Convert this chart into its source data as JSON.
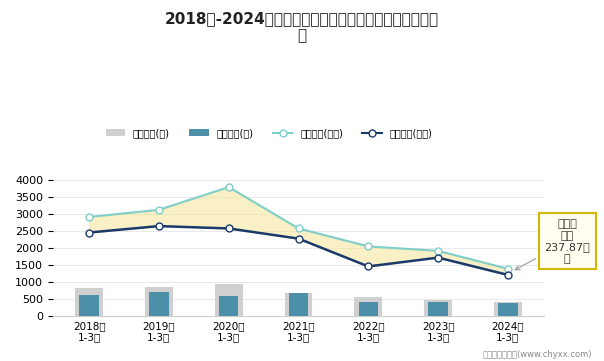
{
  "title": "2018年-2024年四川省全部用地土地供应与成交情况统计\n图",
  "categories": [
    "2018年\n1-3月",
    "2019年\n1-3月",
    "2020年\n1-3月",
    "2021年\n1-3月",
    "2022年\n1-3月",
    "2023年\n1-3月",
    "2024年\n1-3月"
  ],
  "bar_chuzong": [
    820,
    850,
    940,
    670,
    560,
    460,
    420
  ],
  "bar_chengjiao": [
    620,
    700,
    580,
    670,
    400,
    410,
    390
  ],
  "line_chuzong_area": [
    2920,
    3130,
    3800,
    2580,
    2050,
    1920,
    1390
  ],
  "line_chengjiao_area": [
    2460,
    2650,
    2580,
    2280,
    1460,
    1720,
    1210
  ],
  "bar_chuzong_color": "#d0d0d0",
  "bar_chengjiao_color": "#4d8fa8",
  "line_chuzong_color": "#7ecfc9",
  "line_chengjiao_color": "#1a3a6b",
  "fill_color": "#f5e6a0",
  "fill_alpha": 0.6,
  "ylim": [
    0,
    4200
  ],
  "yticks": [
    0,
    500,
    1000,
    1500,
    2000,
    2500,
    3000,
    3500,
    4000
  ],
  "background_color": "#ffffff",
  "annotation_text": "未成交\n面积\n237.87万\n㎡",
  "annotation_border_color": "#d4b800",
  "footer": "制图：智研咨询(www.chyxx.com)"
}
